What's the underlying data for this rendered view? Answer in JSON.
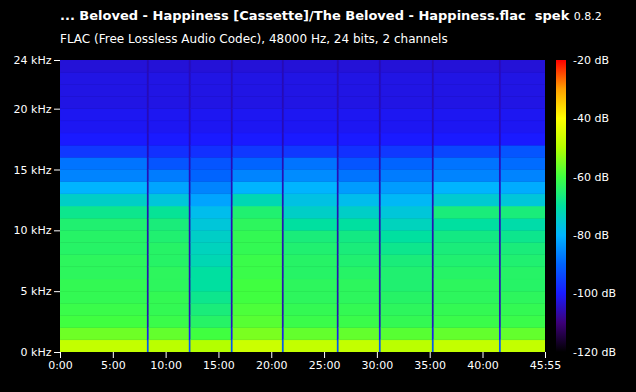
{
  "chart_data": {
    "type": "heatmap",
    "title": "... Beloved - Happiness [Cassette]/The Beloved - Happiness.flac",
    "app_name": "spek",
    "app_version": "0.8.2",
    "subtitle": "FLAC (Free Lossless Audio Codec), 48000 Hz, 24 bits, 2 channels",
    "xlim": [
      0,
      2755
    ],
    "xticks": [
      {
        "value": 0,
        "label": "0:00"
      },
      {
        "value": 300,
        "label": "5:00"
      },
      {
        "value": 600,
        "label": "10:00"
      },
      {
        "value": 900,
        "label": "15:00"
      },
      {
        "value": 1200,
        "label": "20:00"
      },
      {
        "value": 1500,
        "label": "25:00"
      },
      {
        "value": 1800,
        "label": "30:00"
      },
      {
        "value": 2100,
        "label": "35:00"
      },
      {
        "value": 2400,
        "label": "40:00"
      },
      {
        "value": 2755,
        "label": "45:55"
      }
    ],
    "ylim": [
      0,
      24
    ],
    "yticks": [
      {
        "value": 0,
        "label": "0 kHz"
      },
      {
        "value": 5,
        "label": "5 kHz"
      },
      {
        "value": 10,
        "label": "10 kHz"
      },
      {
        "value": 15,
        "label": "15 kHz"
      },
      {
        "value": 20,
        "label": "20 kHz"
      },
      {
        "value": 24,
        "label": "24 kHz"
      }
    ],
    "x_edges": [
      0,
      495,
      505,
      733,
      743,
      972,
      982,
      1262,
      1272,
      1574,
      1584,
      1813,
      1823,
      2114,
      2124,
      2495,
      2505,
      2755
    ],
    "y_edges": [
      0,
      1,
      2,
      3,
      4,
      5,
      6,
      7,
      8,
      9,
      10,
      11,
      12,
      13,
      14,
      15,
      16,
      17,
      18,
      19,
      20,
      21,
      22,
      23,
      24
    ],
    "values": [
      [
        -48,
        -56,
        -60,
        -61,
        -62,
        -62,
        -63,
        -63,
        -64,
        -64,
        -65,
        -68,
        -74,
        -80,
        -86,
        -88,
        -96,
        -100,
        -101,
        -101,
        -102,
        -102,
        -102,
        -103
      ],
      [
        -92,
        -100,
        -104,
        -105,
        -105,
        -105,
        -105,
        -105,
        -105,
        -105,
        -105,
        -105,
        -105,
        -105,
        -105,
        -105,
        -105,
        -105,
        -105,
        -105,
        -105,
        -105,
        -105,
        -105
      ],
      [
        -49,
        -57,
        -61,
        -62,
        -62,
        -63,
        -63,
        -64,
        -64,
        -65,
        -66,
        -69,
        -76,
        -82,
        -87,
        -92,
        -97,
        -100,
        -101,
        -101,
        -102,
        -102,
        -102,
        -103
      ],
      [
        -92,
        -100,
        -104,
        -105,
        -105,
        -105,
        -105,
        -105,
        -105,
        -105,
        -105,
        -105,
        -105,
        -105,
        -105,
        -105,
        -105,
        -105,
        -105,
        -105,
        -105,
        -105,
        -105,
        -105
      ],
      [
        -50,
        -60,
        -64,
        -66,
        -68,
        -70,
        -70,
        -72,
        -73,
        -74,
        -76,
        -78,
        -82,
        -86,
        -90,
        -92,
        -97,
        -100,
        -101,
        -101,
        -102,
        -102,
        -102,
        -103
      ],
      [
        -92,
        -100,
        -104,
        -105,
        -105,
        -105,
        -105,
        -105,
        -105,
        -105,
        -105,
        -105,
        -105,
        -105,
        -105,
        -105,
        -105,
        -105,
        -105,
        -105,
        -105,
        -105,
        -105,
        -105
      ],
      [
        -47,
        -55,
        -58,
        -59,
        -60,
        -60,
        -61,
        -61,
        -62,
        -62,
        -63,
        -65,
        -72,
        -80,
        -86,
        -90,
        -96,
        -100,
        -101,
        -101,
        -102,
        -102,
        -102,
        -103
      ],
      [
        -92,
        -100,
        -104,
        -105,
        -105,
        -105,
        -105,
        -105,
        -105,
        -105,
        -105,
        -105,
        -105,
        -105,
        -105,
        -105,
        -105,
        -105,
        -105,
        -105,
        -105,
        -105,
        -105,
        -105
      ],
      [
        -48,
        -57,
        -61,
        -62,
        -63,
        -63,
        -64,
        -64,
        -65,
        -66,
        -70,
        -74,
        -77,
        -80,
        -85,
        -88,
        -96,
        -100,
        -101,
        -101,
        -102,
        -102,
        -102,
        -103
      ],
      [
        -92,
        -100,
        -104,
        -105,
        -105,
        -105,
        -105,
        -105,
        -105,
        -105,
        -105,
        -105,
        -105,
        -105,
        -105,
        -105,
        -105,
        -105,
        -105,
        -105,
        -105,
        -105,
        -105,
        -105
      ],
      [
        -48,
        -57,
        -61,
        -62,
        -63,
        -63,
        -64,
        -65,
        -66,
        -67,
        -70,
        -74,
        -78,
        -83,
        -88,
        -92,
        -97,
        -100,
        -101,
        -101,
        -102,
        -102,
        -102,
        -103
      ],
      [
        -92,
        -100,
        -104,
        -105,
        -105,
        -105,
        -105,
        -105,
        -105,
        -105,
        -105,
        -105,
        -105,
        -105,
        -105,
        -105,
        -105,
        -105,
        -105,
        -105,
        -105,
        -105,
        -105,
        -105
      ],
      [
        -49,
        -58,
        -62,
        -63,
        -64,
        -65,
        -65,
        -66,
        -68,
        -70,
        -73,
        -76,
        -79,
        -83,
        -87,
        -90,
        -96,
        -100,
        -101,
        -101,
        -102,
        -102,
        -102,
        -103
      ],
      [
        -92,
        -100,
        -104,
        -105,
        -105,
        -105,
        -105,
        -105,
        -105,
        -105,
        -105,
        -105,
        -105,
        -105,
        -105,
        -105,
        -105,
        -105,
        -105,
        -105,
        -105,
        -105,
        -105,
        -105
      ],
      [
        -48,
        -57,
        -61,
        -62,
        -63,
        -63,
        -64,
        -65,
        -66,
        -67,
        -70,
        -66,
        -75,
        -80,
        -86,
        -88,
        -94,
        -100,
        -101,
        -101,
        -102,
        -102,
        -102,
        -103
      ],
      [
        -92,
        -100,
        -104,
        -105,
        -105,
        -105,
        -105,
        -105,
        -105,
        -105,
        -105,
        -105,
        -105,
        -105,
        -105,
        -105,
        -105,
        -105,
        -105,
        -105,
        -105,
        -105,
        -105,
        -105
      ],
      [
        -48,
        -57,
        -61,
        -62,
        -63,
        -64,
        -64,
        -65,
        -66,
        -68,
        -71,
        -66,
        -76,
        -81,
        -86,
        -89,
        -92,
        -100,
        -101,
        -101,
        -102,
        -102,
        -102,
        -103
      ]
    ],
    "colorbar_range": [
      -120,
      -20
    ],
    "colorbar_ticks": [
      {
        "value": -20,
        "label": "-20 dB"
      },
      {
        "value": -40,
        "label": "-40 dB"
      },
      {
        "value": -60,
        "label": "-60 dB"
      },
      {
        "value": -80,
        "label": "-80 dB"
      },
      {
        "value": -100,
        "label": "-100 dB"
      },
      {
        "value": -120,
        "label": "-120 dB"
      }
    ]
  }
}
